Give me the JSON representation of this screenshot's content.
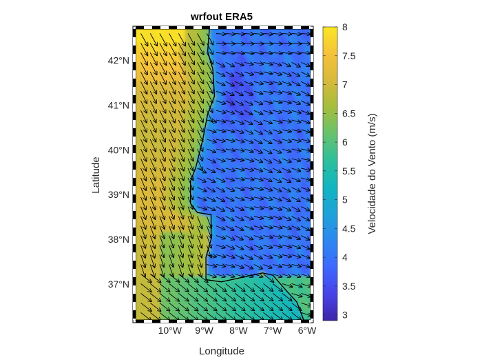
{
  "chart_data": {
    "type": "heatmap",
    "title": "wrfout ERA5",
    "xlabel": "Longitude",
    "ylabel": "Latitude",
    "colorbar_label": "Velocidade do Vento (m/s)",
    "xlim": [
      -11.0,
      -5.9
    ],
    "ylim": [
      36.2,
      42.7
    ],
    "x_ticks": [
      -10,
      -9,
      -8,
      -7,
      -6
    ],
    "x_tick_labels": [
      "10°W",
      "9°W",
      "8°W",
      "7°W",
      "6°W"
    ],
    "y_ticks": [
      37,
      38,
      39,
      40,
      41,
      42
    ],
    "y_tick_labels": [
      "37°N",
      "38°N",
      "39°N",
      "40°N",
      "41°N",
      "42°N"
    ],
    "colorbar_range": [
      2.9,
      8.0
    ],
    "colorbar_ticks": [
      3,
      3.5,
      4,
      4.5,
      5,
      5.5,
      6,
      6.5,
      7,
      7.5,
      8
    ],
    "colorbar_tick_labels": [
      "3",
      "3.5",
      "4",
      "4.5",
      "5",
      "5.5",
      "6",
      "6.5",
      "7",
      "7.5",
      "8"
    ],
    "colormap": "parula",
    "colormap_stops": [
      "#3e26a8",
      "#4744e8",
      "#3e69fe",
      "#2c88f0",
      "#1fa2d9",
      "#12b5c1",
      "#2ebf9b",
      "#68c26d",
      "#a5be3d",
      "#d7b93b",
      "#f6c23a",
      "#f9e724"
    ],
    "coastline": [
      [
        -8.85,
        42.7
      ],
      [
        -8.9,
        42.2
      ],
      [
        -8.75,
        41.8
      ],
      [
        -8.7,
        41.2
      ],
      [
        -8.9,
        40.8
      ],
      [
        -9.05,
        40.2
      ],
      [
        -9.25,
        39.6
      ],
      [
        -9.4,
        39.3
      ],
      [
        -9.4,
        38.8
      ],
      [
        -9.2,
        38.6
      ],
      [
        -8.8,
        38.55
      ],
      [
        -8.8,
        38.0
      ],
      [
        -8.95,
        37.6
      ],
      [
        -8.95,
        37.1
      ],
      [
        -8.5,
        37.05
      ],
      [
        -7.6,
        37.2
      ],
      [
        -7.3,
        37.25
      ],
      [
        -7.0,
        37.2
      ],
      [
        -6.6,
        36.85
      ],
      [
        -6.3,
        36.6
      ],
      [
        -6.1,
        36.2
      ]
    ]
  }
}
